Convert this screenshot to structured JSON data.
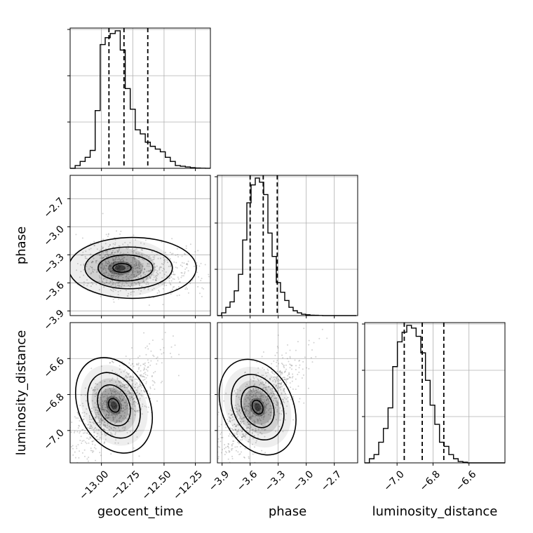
{
  "chart_data": [
    {
      "type": "histogram",
      "parameter": "geocent_time",
      "x": [
        -13.25,
        -13.21,
        -13.17,
        -13.13,
        -13.09,
        -13.05,
        -13.01,
        -12.97,
        -12.93,
        -12.89,
        -12.85,
        -12.81,
        -12.77,
        -12.73,
        -12.69,
        -12.65,
        -12.61,
        -12.57,
        -12.53,
        -12.49,
        -12.45,
        -12.41,
        -12.37,
        -12.33,
        -12.29,
        -12.25,
        -12.21,
        -12.17,
        -12.13
      ],
      "counts": [
        0,
        0.02,
        0.05,
        0.08,
        0.13,
        0.42,
        0.9,
        0.95,
        0.98,
        1.0,
        0.86,
        0.58,
        0.43,
        0.28,
        0.25,
        0.19,
        0.16,
        0.14,
        0.12,
        0.08,
        0.05,
        0.02,
        0.015,
        0.01,
        0.005,
        0.002,
        0.001,
        0.0005
      ],
      "quantiles": [
        -12.94,
        -12.82,
        -12.63
      ],
      "xlim": [
        -13.25,
        -12.13
      ],
      "grid": true
    },
    {
      "type": "histogram",
      "parameter": "phase",
      "x": [
        -3.95,
        -3.905,
        -3.86,
        -3.815,
        -3.77,
        -3.725,
        -3.68,
        -3.635,
        -3.59,
        -3.545,
        -3.5,
        -3.455,
        -3.41,
        -3.365,
        -3.32,
        -3.275,
        -3.23,
        -3.185,
        -3.14,
        -3.095,
        -3.05,
        -3.005,
        -2.96,
        -2.915,
        -2.87,
        -2.825,
        -2.78,
        -2.735,
        -2.69,
        -2.645,
        -2.6,
        -2.555,
        -2.51,
        -2.465
      ],
      "counts": [
        0,
        0.02,
        0.06,
        0.1,
        0.18,
        0.3,
        0.55,
        0.82,
        0.95,
        1.0,
        0.97,
        0.88,
        0.6,
        0.43,
        0.24,
        0.17,
        0.11,
        0.06,
        0.035,
        0.02,
        0.01,
        0.006,
        0.003,
        0.002,
        0.001,
        0,
        0,
        0,
        0,
        0,
        0,
        0,
        0
      ],
      "quantiles": [
        -3.6,
        -3.46,
        -3.31
      ],
      "xlim": [
        -3.95,
        -2.45
      ],
      "grid": true
    },
    {
      "type": "histogram",
      "parameter": "luminosity_distance",
      "x": [
        -7.18,
        -7.154,
        -7.128,
        -7.102,
        -7.076,
        -7.05,
        -7.024,
        -6.998,
        -6.972,
        -6.946,
        -6.92,
        -6.894,
        -6.868,
        -6.842,
        -6.816,
        -6.79,
        -6.764,
        -6.738,
        -6.712,
        -6.686,
        -6.66,
        -6.634,
        -6.608,
        -6.582,
        -6.556,
        -6.53,
        -6.504,
        -6.478,
        -6.452,
        -6.426,
        -6.4
      ],
      "counts": [
        0,
        0.03,
        0.06,
        0.15,
        0.25,
        0.4,
        0.7,
        0.88,
        0.95,
        1.0,
        0.98,
        0.92,
        0.8,
        0.6,
        0.42,
        0.28,
        0.15,
        0.12,
        0.06,
        0.03,
        0.01,
        0.005,
        0,
        0,
        0,
        0,
        0,
        0,
        0,
        0
      ],
      "quantiles": [
        -6.96,
        -6.86,
        -6.74
      ],
      "xlim": [
        -7.18,
        -6.4
      ],
      "grid": true
    },
    {
      "type": "scatter-density",
      "x_parameter": "geocent_time",
      "y_parameter": "phase",
      "mode": [
        -12.85,
        -3.44
      ],
      "contour_levels": 4,
      "xlim": [
        -13.25,
        -12.13
      ],
      "ylim": [
        -3.95,
        -2.45
      ]
    },
    {
      "type": "scatter-density",
      "x_parameter": "geocent_time",
      "y_parameter": "luminosity_distance",
      "mode": [
        -12.9,
        -6.86
      ],
      "contour_levels": 4,
      "xlim": [
        -13.25,
        -12.13
      ],
      "ylim": [
        -7.18,
        -6.4
      ]
    },
    {
      "type": "scatter-density",
      "x_parameter": "phase",
      "y_parameter": "luminosity_distance",
      "mode": [
        -3.52,
        -6.87
      ],
      "contour_levels": 4,
      "xlim": [
        -3.95,
        -2.45
      ],
      "ylim": [
        -7.18,
        -6.4
      ]
    }
  ],
  "axes": {
    "geocent_time": {
      "label": "geocent_time",
      "ticks": [
        -13.0,
        -12.75,
        -12.5,
        -12.25
      ],
      "tick_labels": [
        "−13.00",
        "−12.75",
        "−12.50",
        "−12.25"
      ]
    },
    "phase": {
      "label": "phase",
      "ticks": [
        -3.9,
        -3.6,
        -3.3,
        -3.0,
        -2.7
      ],
      "tick_labels": [
        "−3.9",
        "−3.6",
        "−3.3",
        "−3.0",
        "−2.7"
      ]
    },
    "luminosity_distance": {
      "label": "luminosity_distance",
      "ticks": [
        -7.0,
        -6.8,
        -6.6
      ],
      "tick_labels": [
        "−7.0",
        "−6.8",
        "−6.6"
      ]
    }
  },
  "colors": {
    "line": "#000000",
    "grid": "#b0b0b0",
    "points": "#7f7f7f"
  }
}
